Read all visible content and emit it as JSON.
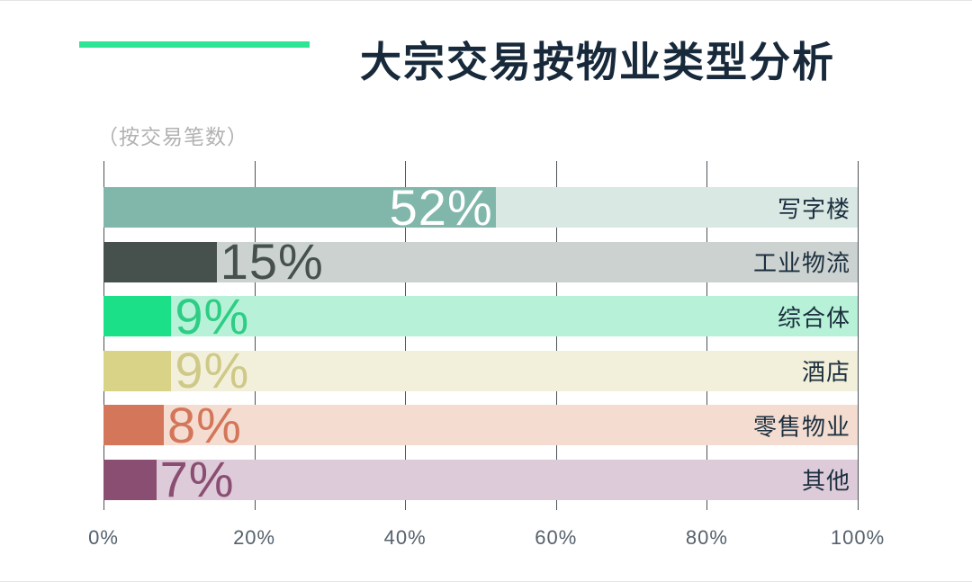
{
  "header": {
    "title": "大宗交易按物业类型分析",
    "subtitle": "（按交易笔数）",
    "accent_color": "#2ee596",
    "title_color": "#17293a",
    "subtitle_color": "#b2b2b2"
  },
  "chart_data": {
    "type": "bar",
    "orientation": "horizontal",
    "title": "大宗交易按物业类型分析",
    "subtitle": "（按交易笔数）",
    "unit": "%",
    "xlim": [
      0,
      100
    ],
    "grid": true,
    "categories": [
      "写字楼",
      "工业物流",
      "综合体",
      "酒店",
      "零售物业",
      "其他"
    ],
    "values": [
      52,
      15,
      9,
      9,
      8,
      7
    ],
    "rows": [
      {
        "category": "写字楼",
        "value": 52,
        "value_label": "52%",
        "fill_color": "#81b7ab",
        "track_color": "#d9e8e3",
        "value_color": "#ffffff",
        "value_inside": true
      },
      {
        "category": "工业物流",
        "value": 15,
        "value_label": "15%",
        "fill_color": "#46514e",
        "track_color": "#ccd2d0",
        "value_color": "#46514e",
        "value_inside": false
      },
      {
        "category": "综合体",
        "value": 9,
        "value_label": "9%",
        "fill_color": "#1ce087",
        "track_color": "#b7f2d8",
        "value_color": "#2ecd85",
        "value_inside": false
      },
      {
        "category": "酒店",
        "value": 9,
        "value_label": "9%",
        "fill_color": "#d9d388",
        "track_color": "#f2f0da",
        "value_color": "#cfc987",
        "value_inside": false
      },
      {
        "category": "零售物业",
        "value": 8,
        "value_label": "8%",
        "fill_color": "#d4765a",
        "track_color": "#f4ddd0",
        "value_color": "#d4765a",
        "value_inside": false
      },
      {
        "category": "其他",
        "value": 7,
        "value_label": "7%",
        "fill_color": "#8a4e72",
        "track_color": "#ddcbd9",
        "value_color": "#8a4e72",
        "value_inside": false
      }
    ],
    "x_ticks": [
      "0%",
      "20%",
      "40%",
      "60%",
      "80%",
      "100%"
    ],
    "x_tick_values": [
      0,
      20,
      40,
      60,
      80,
      100
    ],
    "axis_label_color": "#55616c",
    "grid_color": "#4d5358",
    "category_label_color": "#1c2f3f"
  }
}
